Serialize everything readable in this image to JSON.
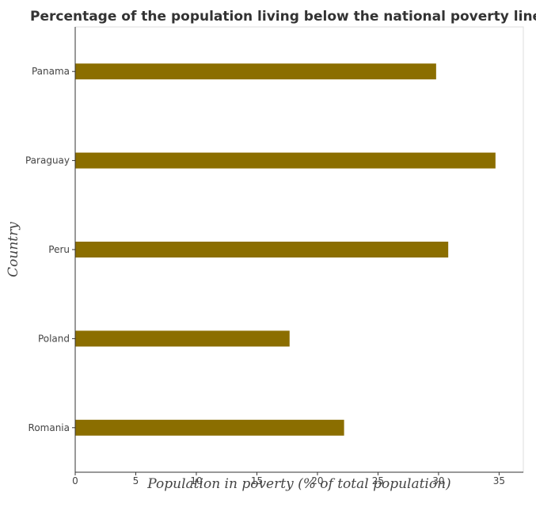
{
  "chart_data": {
    "type": "bar",
    "orientation": "horizontal",
    "title": "Percentage of the population living below the national poverty lines i",
    "xlabel": "Population in poverty (% of total population)",
    "ylabel": "Country",
    "categories": [
      "Panama",
      "Paraguay",
      "Peru",
      "Poland",
      "Romania"
    ],
    "values": [
      29.8,
      34.7,
      30.8,
      17.7,
      22.2
    ],
    "xlim": [
      0,
      37
    ],
    "xticks": [
      0,
      5,
      10,
      15,
      20,
      25,
      30,
      35
    ],
    "grid": false,
    "legend": "none",
    "bar_color": "#8b6e00"
  }
}
